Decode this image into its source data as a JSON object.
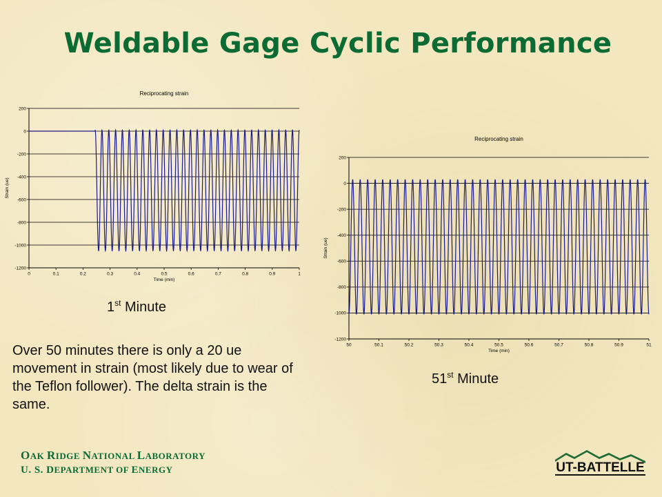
{
  "slide": {
    "title": "Weldable Gage Cyclic Performance",
    "caption1_prefix": "1",
    "caption1_sup": "st",
    "caption1_suffix": " Minute",
    "caption2_prefix": "51",
    "caption2_sup": "st",
    "caption2_suffix": " Minute",
    "body": "Over 50 minutes there is only a 20 ue movement in strain (most likely due to wear of the Teflon follower).  The delta strain is the same.",
    "org_line1": [
      "O",
      "AK ",
      "R",
      "IDGE ",
      "N",
      "ATIONAL ",
      "L",
      "ABORATORY"
    ],
    "org_line2": [
      "U. S. D",
      "EPARTMENT OF ",
      "E",
      "NERGY"
    ],
    "logo_text": "UT-BATTELLE"
  },
  "colors": {
    "title": "#0c6b34",
    "series": "#1a1a8c",
    "gridline": "#000000",
    "org_text": "#0c6b34"
  },
  "chart_data": [
    {
      "type": "line",
      "title": "Reciprocating strain",
      "xlabel": "Time (min)",
      "ylabel": "Strain (ue)",
      "xlim": [
        0,
        1
      ],
      "ylim": [
        -1200,
        200
      ],
      "xticks": [
        "0",
        "0.1",
        "0.2",
        "0.3",
        "0.4",
        "0.5",
        "0.6",
        "0.7",
        "0.8",
        "0.9",
        "1"
      ],
      "yticks": [
        "200",
        "0",
        "-200",
        "-400",
        "-600",
        "-800",
        "-1000",
        "-1200"
      ],
      "grid": "horizontal",
      "series": [
        {
          "flat_segment": {
            "x_start": 0.0,
            "x_end": 0.245,
            "y": 0
          },
          "oscillation": {
            "x_start": 0.245,
            "x_end": 1.0,
            "y_max": 10,
            "y_min": -1050,
            "cycles": 30
          }
        }
      ]
    },
    {
      "type": "line",
      "title": "Reciprocating strain",
      "xlabel": "Time (min)",
      "ylabel": "Strain (ue)",
      "xlim": [
        50,
        51
      ],
      "ylim": [
        -1200,
        200
      ],
      "xticks": [
        "50",
        "50.1",
        "50.2",
        "50.3",
        "50.4",
        "50.5",
        "50.6",
        "50.7",
        "50.8",
        "50.9",
        "51"
      ],
      "yticks": [
        "200",
        "0",
        "-200",
        "-400",
        "-600",
        "-800",
        "-1000",
        "-1200"
      ],
      "grid": "horizontal",
      "series": [
        {
          "oscillation": {
            "x_start": 50.0,
            "x_end": 51.0,
            "y_max": 30,
            "y_min": -1010,
            "cycles": 40
          }
        }
      ]
    }
  ]
}
